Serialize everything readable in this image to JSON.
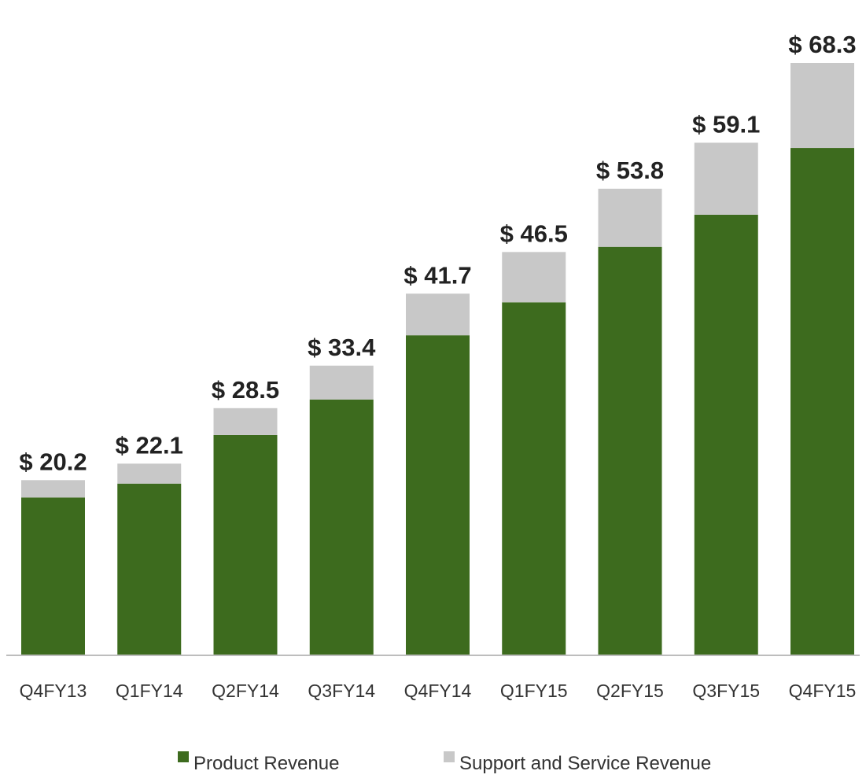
{
  "chart_data": {
    "type": "bar",
    "stacked": true,
    "categories": [
      "Q4FY13",
      "Q1FY14",
      "Q2FY14",
      "Q3FY14",
      "Q4FY14",
      "Q1FY15",
      "Q2FY15",
      "Q3FY15",
      "Q4FY15"
    ],
    "series": [
      {
        "name": "Product Revenue",
        "color": "#3d6b1e",
        "values": [
          18.2,
          19.8,
          25.4,
          29.5,
          36.9,
          40.7,
          47.1,
          50.8,
          58.5
        ]
      },
      {
        "name": "Support and Service Revenue",
        "color": "#c8c8c8",
        "values": [
          2.0,
          2.3,
          3.1,
          3.9,
          4.8,
          5.8,
          6.7,
          8.3,
          9.8
        ]
      }
    ],
    "totals": [
      20.2,
      22.1,
      28.5,
      33.4,
      41.7,
      46.5,
      53.8,
      59.1,
      68.3
    ],
    "total_labels": [
      "$ 20.2",
      "$ 22.1",
      "$ 28.5",
      "$ 33.4",
      "$ 41.7",
      "$ 46.5",
      "$ 53.8",
      "$ 59.1",
      "$ 68.3"
    ],
    "title": "",
    "xlabel": "",
    "ylabel": "",
    "ylim": [
      0,
      68.3
    ],
    "grid": false,
    "legend": {
      "placement": "bottom",
      "entries": [
        "Product Revenue",
        "Support and Service Revenue"
      ]
    }
  }
}
